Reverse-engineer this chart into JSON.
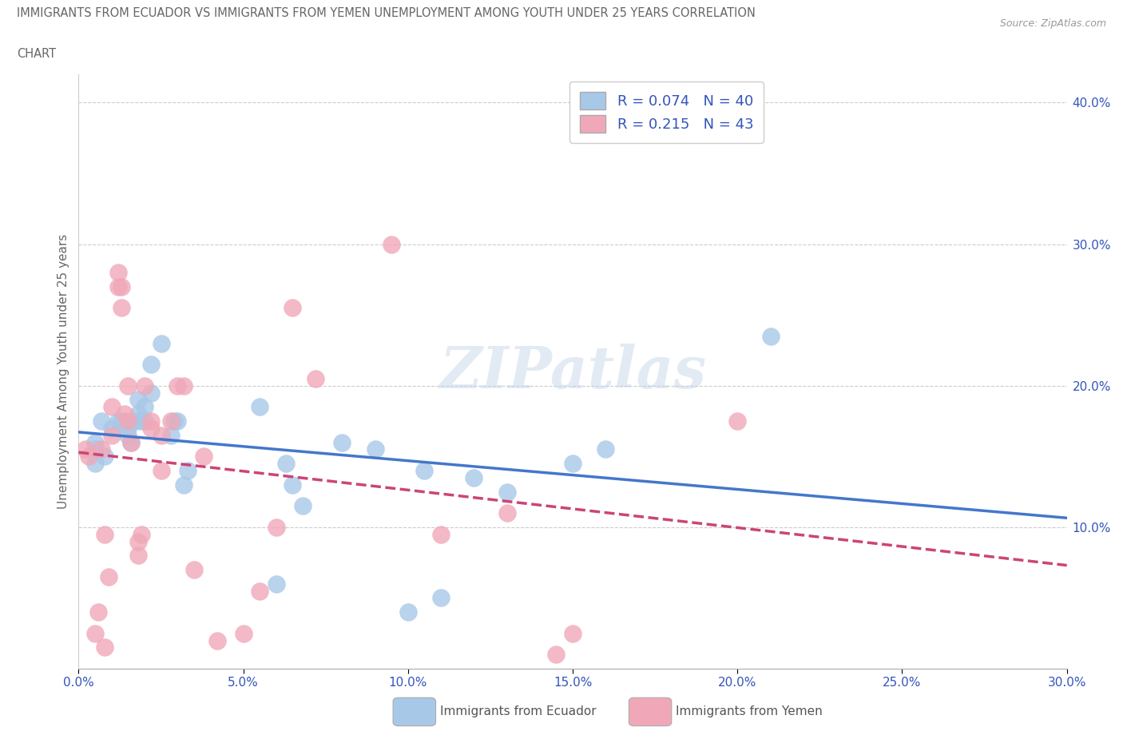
{
  "title_line1": "IMMIGRANTS FROM ECUADOR VS IMMIGRANTS FROM YEMEN UNEMPLOYMENT AMONG YOUTH UNDER 25 YEARS CORRELATION",
  "title_line2": "CHART",
  "source": "Source: ZipAtlas.com",
  "ylabel_label": "Unemployment Among Youth under 25 years",
  "legend1_label": "Immigrants from Ecuador",
  "legend2_label": "Immigrants from Yemen",
  "R1": "0.074",
  "N1": "40",
  "R2": "0.215",
  "N2": "43",
  "color_ecuador": "#a8c8e8",
  "color_yemen": "#f0a8b8",
  "color_ecuador_line": "#4477cc",
  "color_yemen_line": "#cc4477",
  "color_text_blue": "#3355bb",
  "watermark": "ZIPatlas",
  "xlim": [
    0.0,
    0.3
  ],
  "ylim": [
    0.0,
    0.42
  ],
  "xticks": [
    0.0,
    0.05,
    0.1,
    0.15,
    0.2,
    0.25,
    0.3
  ],
  "yticks_right": [
    0.1,
    0.2,
    0.3,
    0.4
  ],
  "ecuador_x": [
    0.005,
    0.005,
    0.005,
    0.007,
    0.008,
    0.01,
    0.012,
    0.013,
    0.015,
    0.015,
    0.016,
    0.017,
    0.018,
    0.018,
    0.019,
    0.02,
    0.02,
    0.022,
    0.022,
    0.025,
    0.028,
    0.029,
    0.03,
    0.032,
    0.033,
    0.055,
    0.06,
    0.063,
    0.065,
    0.068,
    0.08,
    0.09,
    0.1,
    0.105,
    0.11,
    0.12,
    0.13,
    0.15,
    0.16,
    0.21
  ],
  "ecuador_y": [
    0.155,
    0.145,
    0.16,
    0.175,
    0.15,
    0.17,
    0.175,
    0.175,
    0.165,
    0.17,
    0.16,
    0.175,
    0.18,
    0.19,
    0.175,
    0.185,
    0.175,
    0.195,
    0.215,
    0.23,
    0.165,
    0.175,
    0.175,
    0.13,
    0.14,
    0.185,
    0.06,
    0.145,
    0.13,
    0.115,
    0.16,
    0.155,
    0.04,
    0.14,
    0.05,
    0.135,
    0.125,
    0.145,
    0.155,
    0.235
  ],
  "yemen_x": [
    0.002,
    0.003,
    0.005,
    0.006,
    0.007,
    0.008,
    0.008,
    0.009,
    0.01,
    0.01,
    0.012,
    0.012,
    0.013,
    0.013,
    0.014,
    0.015,
    0.015,
    0.016,
    0.018,
    0.018,
    0.019,
    0.02,
    0.022,
    0.022,
    0.025,
    0.025,
    0.028,
    0.03,
    0.032,
    0.035,
    0.038,
    0.042,
    0.05,
    0.055,
    0.06,
    0.065,
    0.072,
    0.095,
    0.11,
    0.13,
    0.145,
    0.15,
    0.2
  ],
  "yemen_y": [
    0.155,
    0.15,
    0.025,
    0.04,
    0.155,
    0.015,
    0.095,
    0.065,
    0.165,
    0.185,
    0.27,
    0.28,
    0.255,
    0.27,
    0.18,
    0.175,
    0.2,
    0.16,
    0.08,
    0.09,
    0.095,
    0.2,
    0.17,
    0.175,
    0.165,
    0.14,
    0.175,
    0.2,
    0.2,
    0.07,
    0.15,
    0.02,
    0.025,
    0.055,
    0.1,
    0.255,
    0.205,
    0.3,
    0.095,
    0.11,
    0.01,
    0.025,
    0.175
  ]
}
